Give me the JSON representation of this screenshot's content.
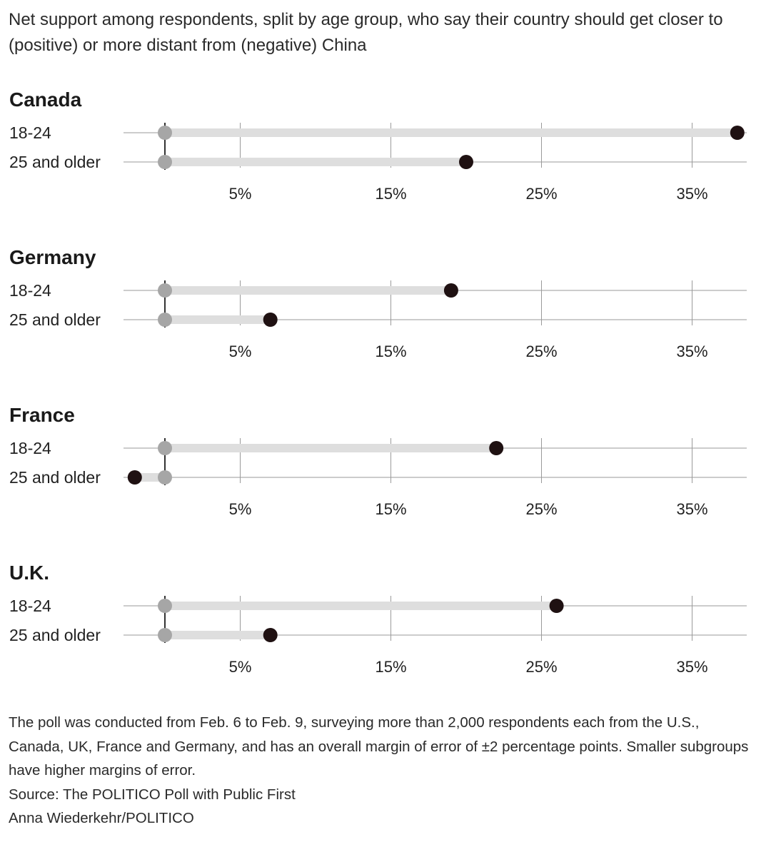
{
  "subtitle": "Net support among respondents, split by age group, who say their country should get closer to (positive) or more distant from (negative) China",
  "chart_data": {
    "type": "dot",
    "subtitle": "Net support among respondents, split by age group, who say their country should get closer to (positive) or more distant from (negative) China",
    "x_unit": "percent",
    "tick_values": [
      5,
      15,
      25,
      35
    ],
    "tick_labels": [
      "5%",
      "15%",
      "25%",
      "35%"
    ],
    "xlim": [
      -2,
      39
    ],
    "baseline": 0,
    "colors": {
      "dot": "#1f1112",
      "origin_dot": "#a6a6a6",
      "bar": "#dedede",
      "gridline": "#9a9a9a",
      "axis": "#333333"
    },
    "panels": [
      {
        "country": "Canada",
        "rows": [
          {
            "label": "18-24",
            "value": 38
          },
          {
            "label": "25 and older",
            "value": 20
          }
        ]
      },
      {
        "country": "Germany",
        "rows": [
          {
            "label": "18-24",
            "value": 19
          },
          {
            "label": "25 and older",
            "value": 7
          }
        ]
      },
      {
        "country": "France",
        "rows": [
          {
            "label": "18-24",
            "value": 22
          },
          {
            "label": "25 and older",
            "value": -2
          }
        ]
      },
      {
        "country": "U.K.",
        "rows": [
          {
            "label": "18-24",
            "value": 26
          },
          {
            "label": "25 and older",
            "value": 7
          }
        ]
      }
    ]
  },
  "footnotes": {
    "methodology": "The poll was conducted from Feb. 6 to Feb. 9, surveying more than 2,000 respondents each from the U.S., Canada, UK, France and Germany, and has an overall margin of error of ±2 percentage points. Smaller subgroups have higher margins of error.",
    "source": "Source: The POLITICO Poll with Public First",
    "credit": "Anna Wiederkehr/POLITICO"
  }
}
